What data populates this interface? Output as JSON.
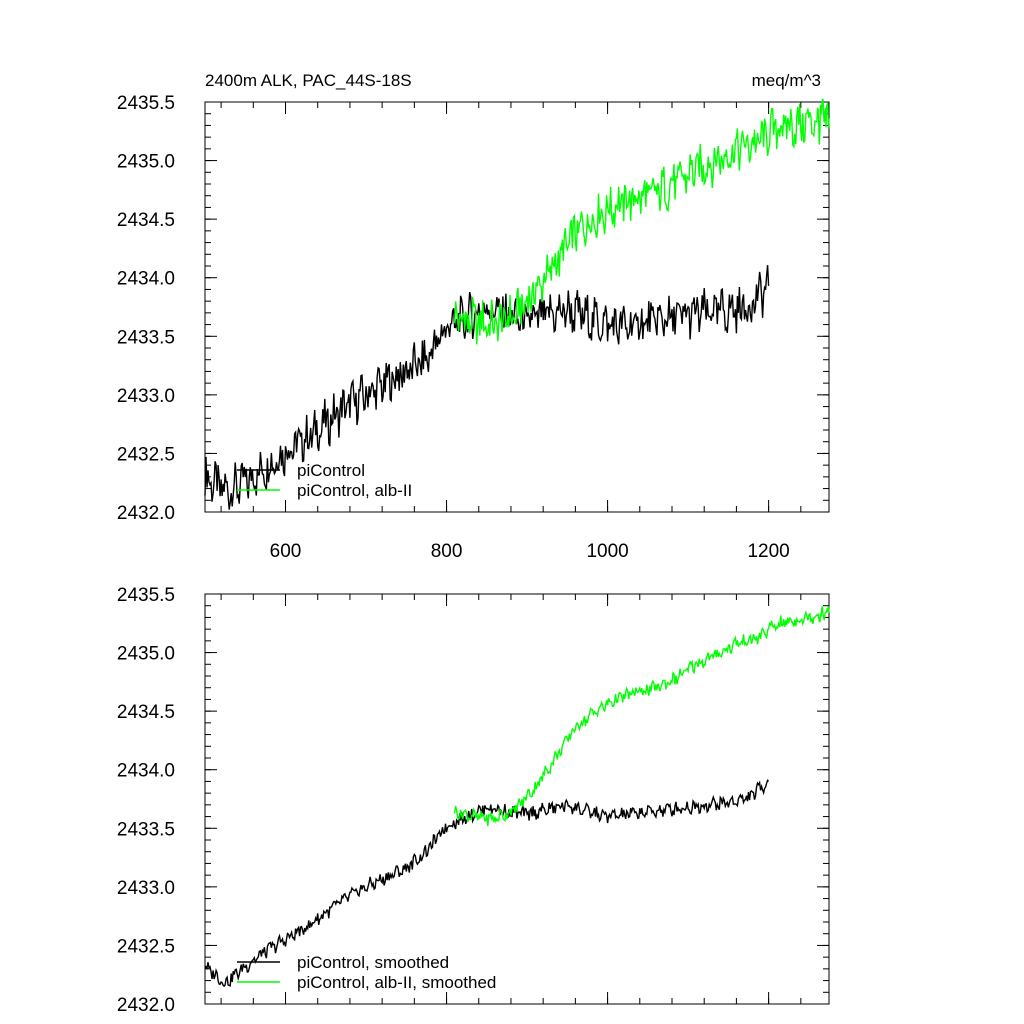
{
  "chart_data": [
    {
      "type": "line",
      "title_left": "2400m ALK, PAC_44S-18S",
      "title_right": "meq/m^3",
      "xlim": [
        500,
        1275
      ],
      "ylim": [
        2432.0,
        2435.5
      ],
      "x_ticks": [
        600,
        800,
        1000,
        1200
      ],
      "x_tick_labels": [
        "600",
        "800",
        "1000",
        "1200"
      ],
      "y_ticks": [
        2432.0,
        2432.5,
        2433.0,
        2433.5,
        2434.0,
        2434.5,
        2435.0,
        2435.5
      ],
      "y_tick_labels": [
        "2432.0",
        "2432.5",
        "2433.0",
        "2433.5",
        "2434.0",
        "2434.5",
        "2435.0",
        "2435.5"
      ],
      "legend_position": "bottom-left",
      "series": [
        {
          "name": "piControl",
          "color": "#000000",
          "x": [
            500,
            525,
            550,
            575,
            600,
            625,
            650,
            675,
            700,
            725,
            750,
            775,
            800,
            825,
            850,
            875,
            900,
            925,
            950,
            975,
            1000,
            1025,
            1050,
            1075,
            1100,
            1125,
            1150,
            1175,
            1200
          ],
          "y": [
            2432.3,
            2432.18,
            2432.25,
            2432.38,
            2432.52,
            2432.62,
            2432.75,
            2432.9,
            2433.0,
            2433.1,
            2433.2,
            2433.3,
            2433.58,
            2433.65,
            2433.75,
            2433.68,
            2433.62,
            2433.68,
            2433.72,
            2433.66,
            2433.6,
            2433.58,
            2433.62,
            2433.65,
            2433.68,
            2433.7,
            2433.72,
            2433.75,
            2433.93
          ]
        },
        {
          "name": "piControl, alb-II",
          "color": "#00ff00",
          "x": [
            810,
            835,
            860,
            885,
            910,
            935,
            960,
            985,
            1010,
            1035,
            1060,
            1085,
            1110,
            1135,
            1160,
            1185,
            1210,
            1235,
            1260,
            1275
          ],
          "y": [
            2433.66,
            2433.62,
            2433.6,
            2433.68,
            2433.88,
            2434.12,
            2434.38,
            2434.52,
            2434.62,
            2434.68,
            2434.72,
            2434.82,
            2434.92,
            2435.0,
            2435.1,
            2435.15,
            2435.28,
            2435.3,
            2435.34,
            2435.36
          ]
        }
      ]
    },
    {
      "type": "line",
      "xlim": [
        500,
        1275
      ],
      "ylim": [
        2432.0,
        2435.5
      ],
      "y_ticks": [
        2432.0,
        2432.5,
        2433.0,
        2433.5,
        2434.0,
        2434.5,
        2435.0,
        2435.5
      ],
      "y_tick_labels": [
        "2432.0",
        "2432.5",
        "2433.0",
        "2433.5",
        "2434.0",
        "2434.5",
        "2435.0",
        "2435.5"
      ],
      "legend_position": "bottom-left",
      "series": [
        {
          "name": "piControl, smoothed",
          "color": "#000000",
          "x": [
            500,
            525,
            550,
            575,
            600,
            625,
            650,
            675,
            700,
            725,
            750,
            775,
            800,
            825,
            850,
            875,
            900,
            925,
            950,
            975,
            1000,
            1025,
            1050,
            1075,
            1100,
            1125,
            1150,
            1175,
            1200
          ],
          "y": [
            2432.32,
            2432.18,
            2432.32,
            2432.45,
            2432.55,
            2432.65,
            2432.78,
            2432.9,
            2433.0,
            2433.08,
            2433.16,
            2433.3,
            2433.52,
            2433.6,
            2433.68,
            2433.64,
            2433.62,
            2433.66,
            2433.7,
            2433.64,
            2433.6,
            2433.62,
            2433.64,
            2433.66,
            2433.68,
            2433.7,
            2433.72,
            2433.76,
            2433.9
          ]
        },
        {
          "name": "piControl, alb-II, smoothed",
          "color": "#00ff00",
          "x": [
            810,
            835,
            860,
            885,
            910,
            935,
            960,
            985,
            1010,
            1035,
            1060,
            1085,
            1110,
            1135,
            1160,
            1185,
            1210,
            1235,
            1260,
            1275
          ],
          "y": [
            2433.64,
            2433.6,
            2433.58,
            2433.66,
            2433.85,
            2434.1,
            2434.36,
            2434.5,
            2434.6,
            2434.66,
            2434.7,
            2434.78,
            2434.9,
            2434.98,
            2435.08,
            2435.12,
            2435.24,
            2435.28,
            2435.32,
            2435.34
          ]
        }
      ]
    }
  ]
}
